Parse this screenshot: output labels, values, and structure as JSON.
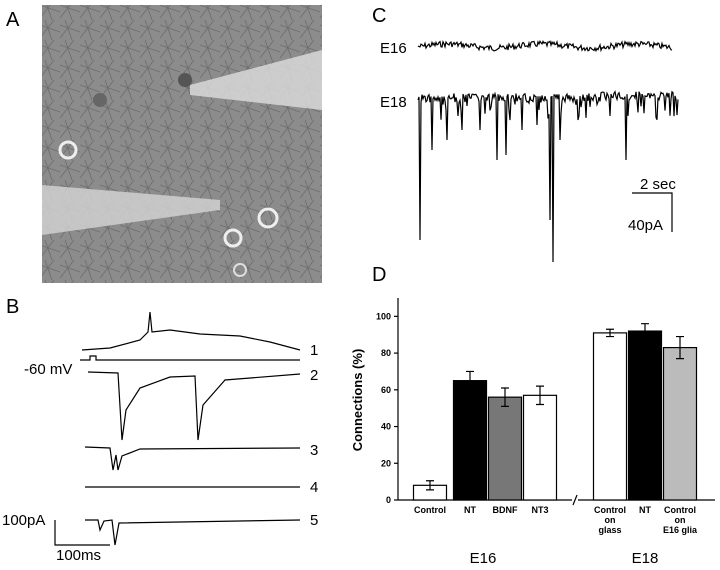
{
  "panel_labels": [
    "A",
    "B",
    "C",
    "D"
  ],
  "panel_b": {
    "holding": "-60 mV",
    "trace_numbers": [
      "1",
      "2",
      "3",
      "4",
      "5"
    ],
    "scale_current": "100pA",
    "scale_time": "100ms"
  },
  "panel_c": {
    "traces": [
      "E16",
      "E18"
    ],
    "scale_time": "2 sec",
    "scale_current": "40pA"
  },
  "chart_data": {
    "type": "bar",
    "y_label": "Connections (%)",
    "categories": [
      [
        "Control"
      ],
      [
        "NT"
      ],
      [
        "BDNF"
      ],
      [
        "NT3"
      ],
      [
        "Control",
        "on",
        "glass"
      ],
      [
        "NT"
      ],
      [
        "Control",
        "on",
        "E16 glia"
      ]
    ],
    "values": [
      8,
      65,
      56,
      57,
      91,
      92,
      83
    ],
    "errors": [
      2.5,
      5,
      5,
      5,
      2,
      4,
      6
    ],
    "colors": [
      "#ffffff",
      "#000000",
      "#777777",
      "#ffffff",
      "#ffffff",
      "#000000",
      "#bbbbbb"
    ],
    "groups": [
      "E16",
      "E18"
    ],
    "ylim": [
      0,
      110
    ],
    "yticks": [
      0,
      20,
      40,
      60,
      80,
      100
    ]
  }
}
